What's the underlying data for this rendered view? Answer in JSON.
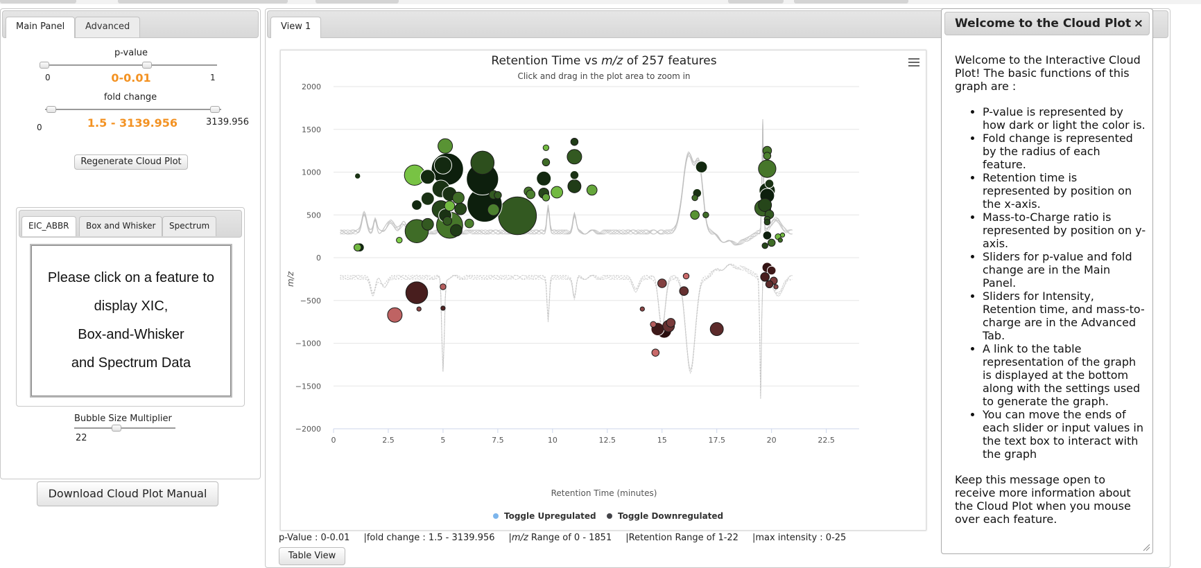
{
  "main_panel": {
    "tabs": [
      {
        "label": "Main Panel",
        "active": true
      },
      {
        "label": "Advanced",
        "active": false
      }
    ],
    "pvalue": {
      "label": "p-value",
      "min_label": "0",
      "max_label": "1",
      "range_text": "0-0.01",
      "low": 0,
      "high": 0.01,
      "min": 0,
      "max": 1
    },
    "fold_change": {
      "label": "fold change",
      "min_label": "0",
      "max_label": "3139.956",
      "range_text": "1.5 - 3139.956",
      "low": 1.5,
      "high": 3139.956,
      "min": 0,
      "max": 3139.956
    },
    "regenerate_label": "Regenerate Cloud Plot",
    "sub_tabs": [
      {
        "label": "EIC_ABBR",
        "active": true
      },
      {
        "label": "Box and Whisker",
        "active": false
      },
      {
        "label": "Spectrum",
        "active": false
      }
    ],
    "message_lines": [
      "Please click on a feature to",
      "display XIC,",
      "Box-and-Whisker",
      "and Spectrum Data"
    ],
    "bubble_size": {
      "label": "Bubble Size Multiplier",
      "value": "22"
    },
    "download_label": "Download Cloud Plot Manual"
  },
  "view": {
    "tab_label": "View 1",
    "table_view_label": "Table View",
    "status": {
      "pvalue": "p-Value : 0-0.01",
      "fold": "fold change : 1.5 - 3139.956",
      "mz_italic": "m/z",
      "mz_rest": " Range of 0 - 1851",
      "retention": "Retention Range of 1-22",
      "max_intensity": "max intensity : 0-25"
    }
  },
  "dialog": {
    "title": "Welcome to the Cloud Plot",
    "close": "×",
    "intro": "Welcome to the Interactive Cloud Plot! The basic functions of this graph are :",
    "items": [
      "P-value is represented by how dark or light the color is.",
      "Fold change is represented by the radius of each feature.",
      "Retention time is represented by position on the x-axis.",
      "Mass-to-Charge ratio is represented by position on y-axis.",
      "Sliders for p-value and fold change are in the Main Panel.",
      "Sliders for Intensity, Retention time, and mass-to-charge are in the Advanced Tab.",
      "A link to the table representation of the graph is displayed at the bottom along with the settings used to generate the graph.",
      "You can move the ends of each slider or input values in the text box to interact with the graph"
    ],
    "closing": "Keep this message open to receive more information about the Cloud Plot when you mouse over each feature."
  },
  "chart_data": {
    "type": "scatter",
    "title_prefix": "Retention Time vs ",
    "title_italic": "m/z",
    "title_suffix": " of 257 features",
    "subtitle": "Click and drag in the plot area to zoom in",
    "xlabel": "Retention Time (minutes)",
    "ylabel": "m/z",
    "xlim": [
      0,
      24
    ],
    "ylim": [
      -2000,
      2000
    ],
    "x_ticks": [
      "0",
      "2.5",
      "5",
      "7.5",
      "10",
      "12.5",
      "15",
      "17.5",
      "20",
      "22.5"
    ],
    "y_ticks": [
      "2000",
      "1500",
      "1000",
      "500",
      "0",
      "−500",
      "−1000",
      "−1500",
      "−2000"
    ],
    "grid": true,
    "legend_position": "bottom",
    "legend": [
      {
        "label": "Toggle Upregulated",
        "color": "#7cb5ec"
      },
      {
        "label": "Toggle Downregulated",
        "color": "#434348"
      }
    ],
    "colors": {
      "up_light": "#8be04e",
      "up_dark": "#0d1f0d",
      "down_light": "#f08080",
      "down_dark": "#2a0d0d"
    },
    "series": [
      {
        "name": "Toggle Upregulated",
        "points": [
          [
            1.1,
            955,
            4,
            0.9
          ],
          [
            1.1,
            120,
            5,
            0.2
          ],
          [
            1.2,
            120,
            6,
            0.95
          ],
          [
            3.0,
            205,
            4,
            0.1
          ],
          [
            3.7,
            965,
            14,
            0.15
          ],
          [
            3.8,
            615,
            7,
            0.95
          ],
          [
            3.8,
            310,
            16,
            0.6
          ],
          [
            4.3,
            390,
            8,
            0.7
          ],
          [
            4.3,
            690,
            9,
            0.9
          ],
          [
            4.3,
            945,
            10,
            0.95
          ],
          [
            4.9,
            565,
            12,
            0.8
          ],
          [
            4.9,
            805,
            12,
            0.9
          ],
          [
            5.0,
            1080,
            12,
            0.95
          ],
          [
            5.1,
            1305,
            10,
            0.4
          ],
          [
            5.2,
            1035,
            22,
            1.0
          ],
          [
            5.3,
            745,
            10,
            0.9
          ],
          [
            5.3,
            605,
            7,
            0.2
          ],
          [
            5.1,
            495,
            9,
            0.9
          ],
          [
            5.2,
            430,
            6,
            0.7
          ],
          [
            5.3,
            380,
            18,
            0.55
          ],
          [
            5.6,
            320,
            8,
            0.85
          ],
          [
            5.7,
            700,
            8,
            0.6
          ],
          [
            5.8,
            570,
            8,
            0.8
          ],
          [
            6.2,
            400,
            6,
            0.5
          ],
          [
            6.8,
            1110,
            16,
            0.75
          ],
          [
            6.8,
            920,
            22,
            1.0
          ],
          [
            6.9,
            620,
            24,
            1.0
          ],
          [
            7.3,
            560,
            8,
            0.5
          ],
          [
            7.3,
            735,
            6,
            0.7
          ],
          [
            7.5,
            730,
            5,
            0.7
          ],
          [
            8.4,
            490,
            26,
            0.7
          ],
          [
            8.9,
            775,
            6,
            0.55
          ],
          [
            9.0,
            740,
            6,
            0.5
          ],
          [
            9.6,
            755,
            7,
            0.8
          ],
          [
            9.6,
            925,
            10,
            0.95
          ],
          [
            9.7,
            1115,
            5,
            0.6
          ],
          [
            9.7,
            1285,
            4,
            0.2
          ],
          [
            9.7,
            705,
            5,
            0.3
          ],
          [
            10.2,
            765,
            8,
            0.2
          ],
          [
            11.0,
            1355,
            5,
            0.85
          ],
          [
            11.0,
            1180,
            10,
            0.7
          ],
          [
            11.0,
            965,
            6,
            0.9
          ],
          [
            11.0,
            835,
            9,
            0.85
          ],
          [
            11.8,
            790,
            7,
            0.3
          ],
          [
            16.5,
            500,
            6,
            0.4
          ],
          [
            16.6,
            755,
            6,
            0.9
          ],
          [
            16.5,
            700,
            4,
            0.6
          ],
          [
            17.0,
            500,
            4,
            0.6
          ],
          [
            16.8,
            1060,
            8,
            0.95
          ],
          [
            19.8,
            1250,
            6,
            0.55
          ],
          [
            19.8,
            1190,
            5,
            0.5
          ],
          [
            19.8,
            1040,
            12,
            0.55
          ],
          [
            19.9,
            865,
            6,
            0.9
          ],
          [
            19.8,
            785,
            11,
            0.95
          ],
          [
            19.8,
            725,
            10,
            1.0
          ],
          [
            19.7,
            615,
            9,
            0.8
          ],
          [
            19.6,
            580,
            11,
            0.65
          ],
          [
            19.9,
            505,
            6,
            0.7
          ],
          [
            19.8,
            450,
            4,
            0.7
          ],
          [
            19.8,
            415,
            4,
            0.8
          ],
          [
            19.8,
            260,
            6,
            1.0
          ],
          [
            19.7,
            140,
            4,
            0.8
          ],
          [
            20.0,
            175,
            5,
            0.6
          ],
          [
            20.3,
            245,
            4,
            0.2
          ],
          [
            20.5,
            265,
            3,
            0.2
          ],
          [
            20.4,
            205,
            3,
            0.6
          ]
        ]
      },
      {
        "name": "Toggle Downregulated",
        "points": [
          [
            2.8,
            -670,
            10,
            0.25
          ],
          [
            3.8,
            -410,
            15,
            0.85
          ],
          [
            3.9,
            -600,
            3,
            0.5
          ],
          [
            5.0,
            -340,
            4,
            0.3
          ],
          [
            5.0,
            -590,
            3,
            0.8
          ],
          [
            14.1,
            -600,
            3,
            0.5
          ],
          [
            14.6,
            -780,
            4,
            0.3
          ],
          [
            14.7,
            -1110,
            5,
            0.2
          ],
          [
            14.8,
            -835,
            9,
            0.9
          ],
          [
            15.1,
            -855,
            10,
            1.0
          ],
          [
            15.3,
            -800,
            8,
            0.7
          ],
          [
            15.4,
            -760,
            6,
            0.6
          ],
          [
            15.0,
            -300,
            6,
            0.55
          ],
          [
            16.1,
            -215,
            4,
            0.2
          ],
          [
            16.0,
            -390,
            6,
            0.7
          ],
          [
            17.5,
            -835,
            9,
            0.75
          ],
          [
            19.8,
            -115,
            7,
            0.95
          ],
          [
            20.0,
            -150,
            6,
            0.9
          ],
          [
            19.7,
            -225,
            6,
            0.85
          ],
          [
            20.1,
            -270,
            5,
            0.6
          ],
          [
            19.9,
            -310,
            5,
            0.75
          ],
          [
            20.2,
            -340,
            3,
            0.5
          ]
        ]
      }
    ]
  }
}
